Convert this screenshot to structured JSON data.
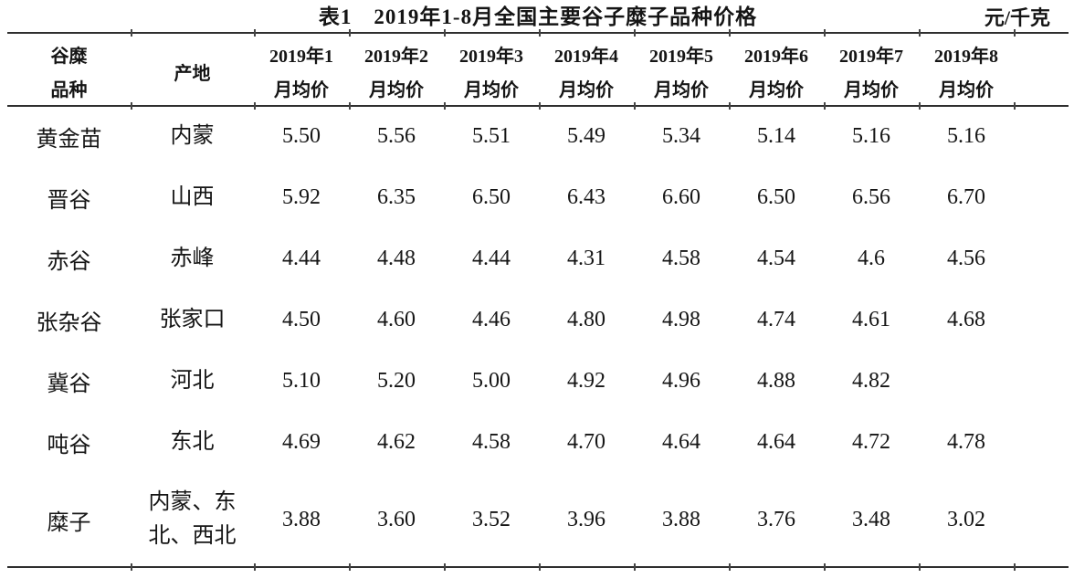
{
  "caption": {
    "title": "表1　2019年1-8月全国主要谷子糜子品种价格",
    "unit": "元/千克"
  },
  "table": {
    "header": {
      "variety_line1": "谷糜",
      "variety_line2": "品种",
      "origin": "产地",
      "months": [
        {
          "line1": "2019年1",
          "line2": "月均价"
        },
        {
          "line1": "2019年2",
          "line2": "月均价"
        },
        {
          "line1": "2019年3",
          "line2": "月均价"
        },
        {
          "line1": "2019年4",
          "line2": "月均价"
        },
        {
          "line1": "2019年5",
          "line2": "月均价"
        },
        {
          "line1": "2019年6",
          "line2": "月均价"
        },
        {
          "line1": "2019年7",
          "line2": "月均价"
        },
        {
          "line1": "2019年8",
          "line2": "月均价"
        }
      ]
    },
    "rows": [
      {
        "variety": "黄金苗",
        "origin": "内蒙",
        "prices": [
          "5.50",
          "5.56",
          "5.51",
          "5.49",
          "5.34",
          "5.14",
          "5.16",
          "5.16"
        ]
      },
      {
        "variety": "晋谷",
        "origin": "山西",
        "prices": [
          "5.92",
          "6.35",
          "6.50",
          "6.43",
          "6.60",
          "6.50",
          "6.56",
          "6.70"
        ]
      },
      {
        "variety": "赤谷",
        "origin": "赤峰",
        "prices": [
          "4.44",
          "4.48",
          "4.44",
          "4.31",
          "4.58",
          "4.54",
          "4.6",
          "4.56"
        ]
      },
      {
        "variety": "张杂谷",
        "origin": "张家口",
        "prices": [
          "4.50",
          "4.60",
          "4.46",
          "4.80",
          "4.98",
          "4.74",
          "4.61",
          "4.68"
        ]
      },
      {
        "variety": "冀谷",
        "origin": "河北",
        "prices": [
          "5.10",
          "5.20",
          "5.00",
          "4.92",
          "4.96",
          "4.88",
          "4.82",
          ""
        ]
      },
      {
        "variety": "吨谷",
        "origin": "东北",
        "prices": [
          "4.69",
          "4.62",
          "4.58",
          "4.70",
          "4.64",
          "4.64",
          "4.72",
          "4.78"
        ]
      },
      {
        "variety": "糜子",
        "origin": "内蒙、东\n北、西北",
        "prices": [
          "3.88",
          "3.60",
          "3.52",
          "3.96",
          "3.88",
          "3.76",
          "3.48",
          "3.02"
        ]
      }
    ]
  }
}
